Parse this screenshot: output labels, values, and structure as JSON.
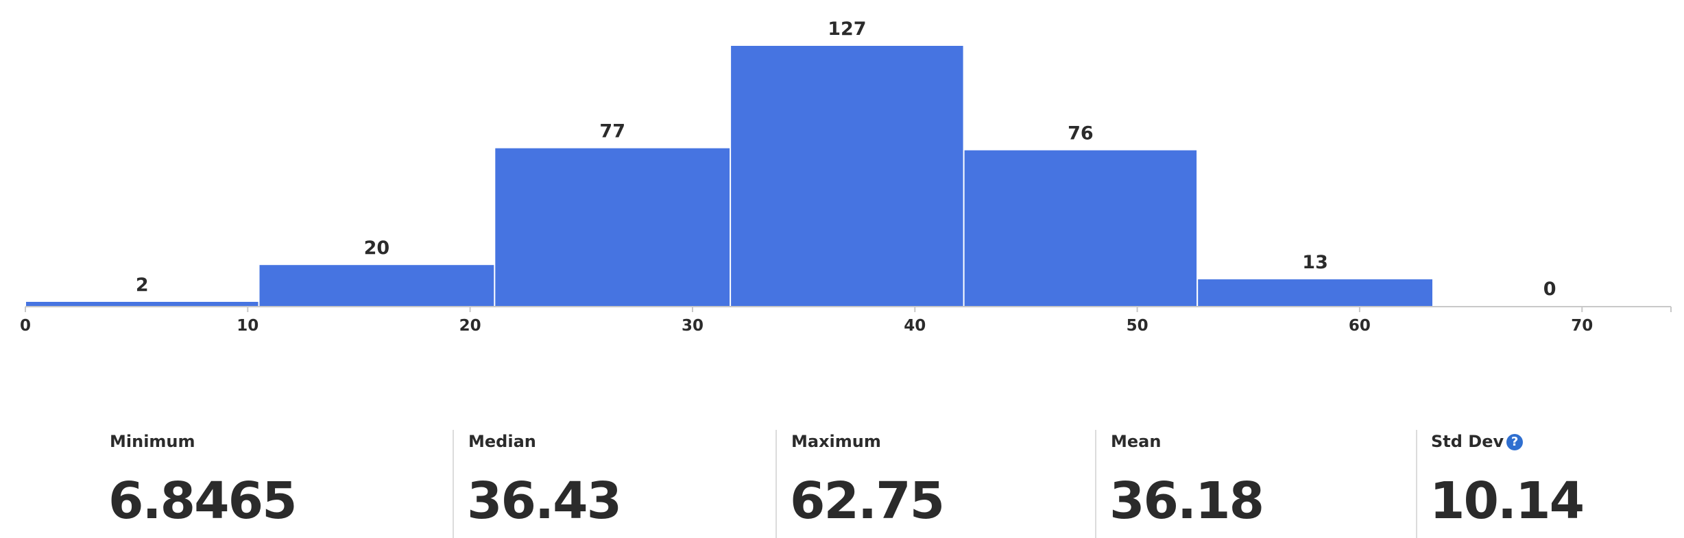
{
  "chart_data": {
    "type": "bar",
    "bins": [
      {
        "start": 0,
        "end": 10.5,
        "count": 2
      },
      {
        "start": 10.5,
        "end": 21.1,
        "count": 20
      },
      {
        "start": 21.1,
        "end": 31.7,
        "count": 77
      },
      {
        "start": 31.7,
        "end": 42.2,
        "count": 127
      },
      {
        "start": 42.2,
        "end": 52.7,
        "count": 76
      },
      {
        "start": 52.7,
        "end": 63.3,
        "count": 13
      },
      {
        "start": 63.3,
        "end": 73.8,
        "count": 0
      }
    ],
    "xticks": [
      0,
      10,
      20,
      30,
      40,
      50,
      60,
      70
    ],
    "xlim": [
      0,
      74
    ],
    "ylim": [
      0,
      127
    ],
    "bar_color": "#4674e1",
    "title": "",
    "xlabel": "",
    "ylabel": "",
    "grid": false,
    "legend": "none"
  },
  "stats": {
    "minimum": {
      "label": "Minimum",
      "value": "6.8465"
    },
    "median": {
      "label": "Median",
      "value": "36.43"
    },
    "maximum": {
      "label": "Maximum",
      "value": "62.75"
    },
    "mean": {
      "label": "Mean",
      "value": "36.18"
    },
    "std_dev": {
      "label": "Std Dev",
      "value": "10.14",
      "help_icon": "question-icon",
      "help_glyph": "?"
    }
  }
}
